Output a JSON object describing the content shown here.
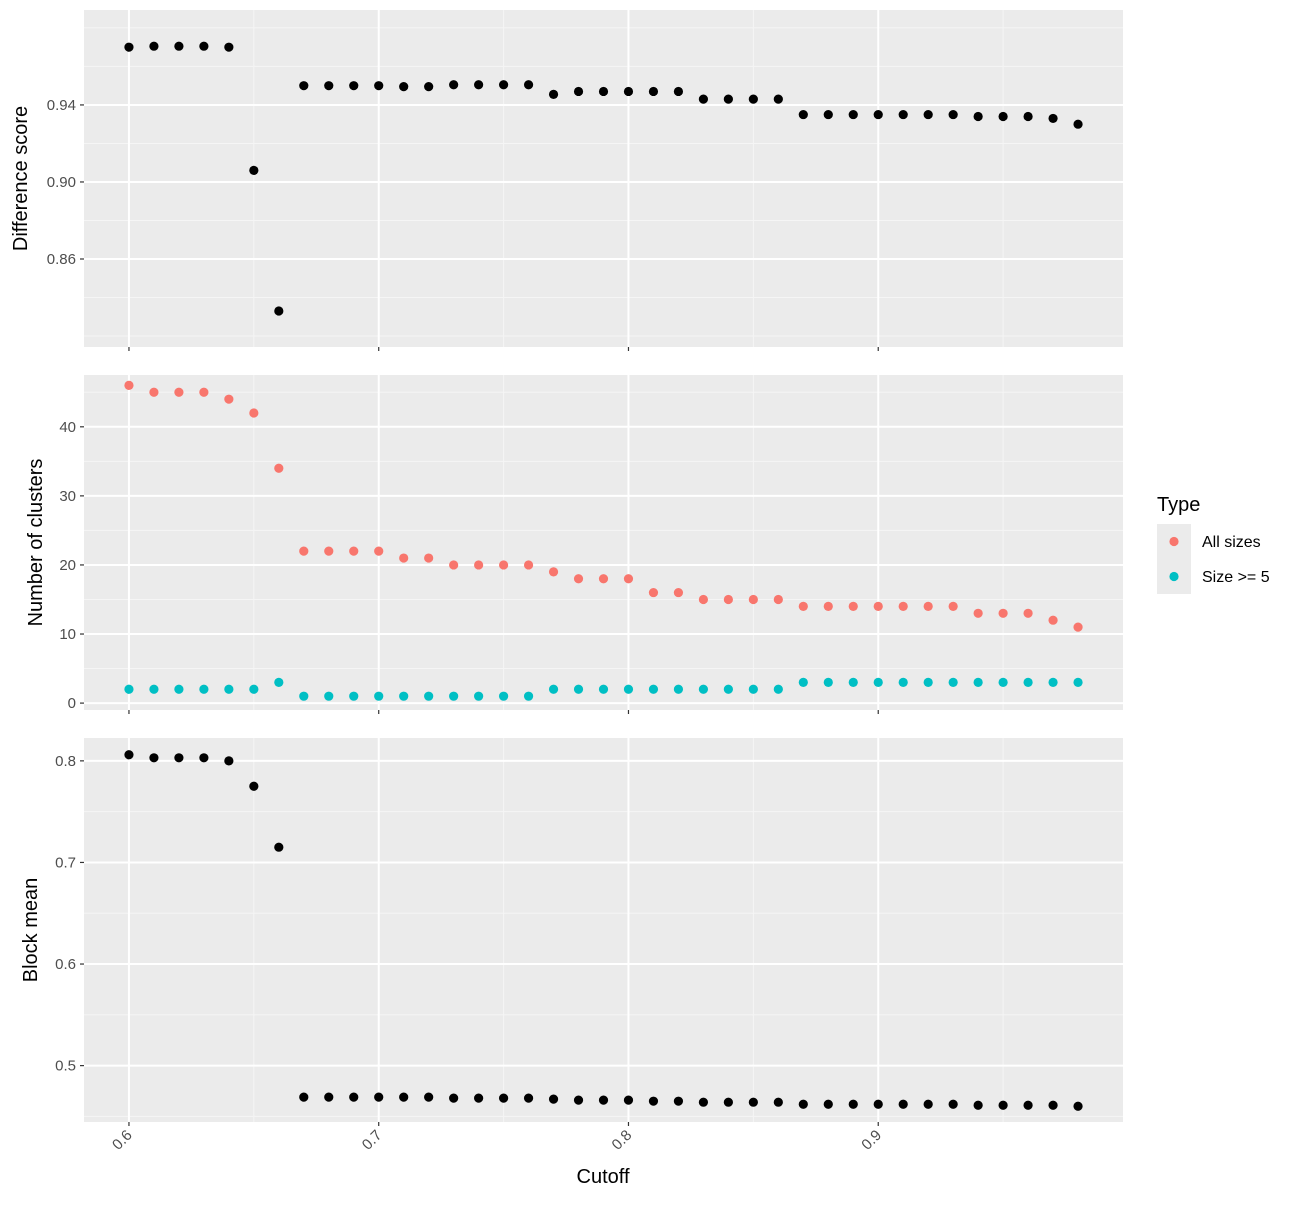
{
  "colors": {
    "panel_bg": "#ebebeb",
    "grid_major": "#ffffff",
    "grid_minor": "#f5f5f5",
    "point_black": "#000000",
    "all_sizes": "#f8766d",
    "size_ge_5": "#00bfc4",
    "legend_key_bg": "#ebebeb"
  },
  "xaxis": {
    "label": "Cutoff",
    "ticks": [
      0.6,
      0.7,
      0.8,
      0.9
    ],
    "tick_labels": [
      "0.6",
      "0.7",
      "0.8",
      "0.9"
    ],
    "range": [
      0.582,
      0.998
    ],
    "minor_ticks": [
      0.65,
      0.75,
      0.85,
      0.95
    ],
    "tick_angle": -45
  },
  "legend": {
    "title": "Type",
    "placement": "right",
    "items": [
      {
        "label": "All sizes",
        "series": "all_sizes"
      },
      {
        "label": "Size >= 5",
        "series": "size_ge_5"
      }
    ]
  },
  "chart_data": [
    {
      "type": "scatter",
      "ylabel": "Difference score",
      "ylim": [
        0.8143,
        0.9893
      ],
      "yticks": [
        0.86,
        0.9,
        0.94
      ],
      "ytick_labels": [
        "0.86",
        "0.90",
        "0.94"
      ],
      "y_minor": [
        0.82,
        0.84,
        0.88,
        0.92,
        0.96,
        0.98
      ],
      "grid": true,
      "series": [
        {
          "key": "diff",
          "x": [
            0.6,
            0.61,
            0.62,
            0.63,
            0.64,
            0.65,
            0.66,
            0.67,
            0.68,
            0.69,
            0.7,
            0.71,
            0.72,
            0.73,
            0.74,
            0.75,
            0.76,
            0.77,
            0.78,
            0.79,
            0.8,
            0.81,
            0.82,
            0.83,
            0.84,
            0.85,
            0.86,
            0.87,
            0.88,
            0.89,
            0.9,
            0.91,
            0.92,
            0.93,
            0.94,
            0.95,
            0.96,
            0.97,
            0.98
          ],
          "values": [
            0.97,
            0.9705,
            0.9705,
            0.9705,
            0.97,
            0.906,
            0.833,
            0.95,
            0.95,
            0.95,
            0.95,
            0.9495,
            0.9495,
            0.9505,
            0.9505,
            0.9505,
            0.9505,
            0.9455,
            0.947,
            0.947,
            0.947,
            0.947,
            0.947,
            0.943,
            0.943,
            0.943,
            0.943,
            0.935,
            0.935,
            0.935,
            0.935,
            0.935,
            0.935,
            0.935,
            0.934,
            0.934,
            0.934,
            0.933,
            0.93
          ]
        }
      ]
    },
    {
      "type": "scatter",
      "ylabel": "Number of clusters",
      "ylim": [
        -1,
        47.5
      ],
      "yticks": [
        0,
        10,
        20,
        30,
        40
      ],
      "ytick_labels": [
        "0",
        "10",
        "20",
        "30",
        "40"
      ],
      "y_minor": [
        5,
        15,
        25,
        35,
        45
      ],
      "grid": true,
      "series": [
        {
          "key": "all_sizes",
          "name": "All sizes",
          "x": [
            0.6,
            0.61,
            0.62,
            0.63,
            0.64,
            0.65,
            0.66,
            0.67,
            0.68,
            0.69,
            0.7,
            0.71,
            0.72,
            0.73,
            0.74,
            0.75,
            0.76,
            0.77,
            0.78,
            0.79,
            0.8,
            0.81,
            0.82,
            0.83,
            0.84,
            0.85,
            0.86,
            0.87,
            0.88,
            0.89,
            0.9,
            0.91,
            0.92,
            0.93,
            0.94,
            0.95,
            0.96,
            0.97,
            0.98
          ],
          "values": [
            46,
            45,
            45,
            45,
            44,
            42,
            34,
            22,
            22,
            22,
            22,
            21,
            21,
            20,
            20,
            20,
            20,
            19,
            18,
            18,
            18,
            16,
            16,
            15,
            15,
            15,
            15,
            14,
            14,
            14,
            14,
            14,
            14,
            14,
            13,
            13,
            13,
            12,
            11
          ]
        },
        {
          "key": "size_ge_5",
          "name": "Size >= 5",
          "x": [
            0.6,
            0.61,
            0.62,
            0.63,
            0.64,
            0.65,
            0.66,
            0.67,
            0.68,
            0.69,
            0.7,
            0.71,
            0.72,
            0.73,
            0.74,
            0.75,
            0.76,
            0.77,
            0.78,
            0.79,
            0.8,
            0.81,
            0.82,
            0.83,
            0.84,
            0.85,
            0.86,
            0.87,
            0.88,
            0.89,
            0.9,
            0.91,
            0.92,
            0.93,
            0.94,
            0.95,
            0.96,
            0.97,
            0.98
          ],
          "values": [
            2,
            2,
            2,
            2,
            2,
            2,
            3,
            1,
            1,
            1,
            1,
            1,
            1,
            1,
            1,
            1,
            1,
            2,
            2,
            2,
            2,
            2,
            2,
            2,
            2,
            2,
            2,
            3,
            3,
            3,
            3,
            3,
            3,
            3,
            3,
            3,
            3,
            3,
            3
          ]
        }
      ]
    },
    {
      "type": "scatter",
      "ylabel": "Block mean",
      "xlabel": "Cutoff",
      "ylim": [
        0.4445,
        0.8225
      ],
      "yticks": [
        0.5,
        0.6,
        0.7,
        0.8
      ],
      "ytick_labels": [
        "0.5",
        "0.6",
        "0.7",
        "0.8"
      ],
      "y_minor": [
        0.45,
        0.55,
        0.65,
        0.75
      ],
      "grid": true,
      "series": [
        {
          "key": "block",
          "x": [
            0.6,
            0.61,
            0.62,
            0.63,
            0.64,
            0.65,
            0.66,
            0.67,
            0.68,
            0.69,
            0.7,
            0.71,
            0.72,
            0.73,
            0.74,
            0.75,
            0.76,
            0.77,
            0.78,
            0.79,
            0.8,
            0.81,
            0.82,
            0.83,
            0.84,
            0.85,
            0.86,
            0.87,
            0.88,
            0.89,
            0.9,
            0.91,
            0.92,
            0.93,
            0.94,
            0.95,
            0.96,
            0.97,
            0.98
          ],
          "values": [
            0.806,
            0.803,
            0.803,
            0.803,
            0.8,
            0.775,
            0.715,
            0.469,
            0.469,
            0.469,
            0.469,
            0.469,
            0.469,
            0.468,
            0.468,
            0.468,
            0.468,
            0.467,
            0.466,
            0.466,
            0.466,
            0.465,
            0.465,
            0.464,
            0.464,
            0.464,
            0.464,
            0.462,
            0.462,
            0.462,
            0.462,
            0.462,
            0.462,
            0.462,
            0.461,
            0.461,
            0.461,
            0.461,
            0.46
          ]
        }
      ]
    }
  ]
}
